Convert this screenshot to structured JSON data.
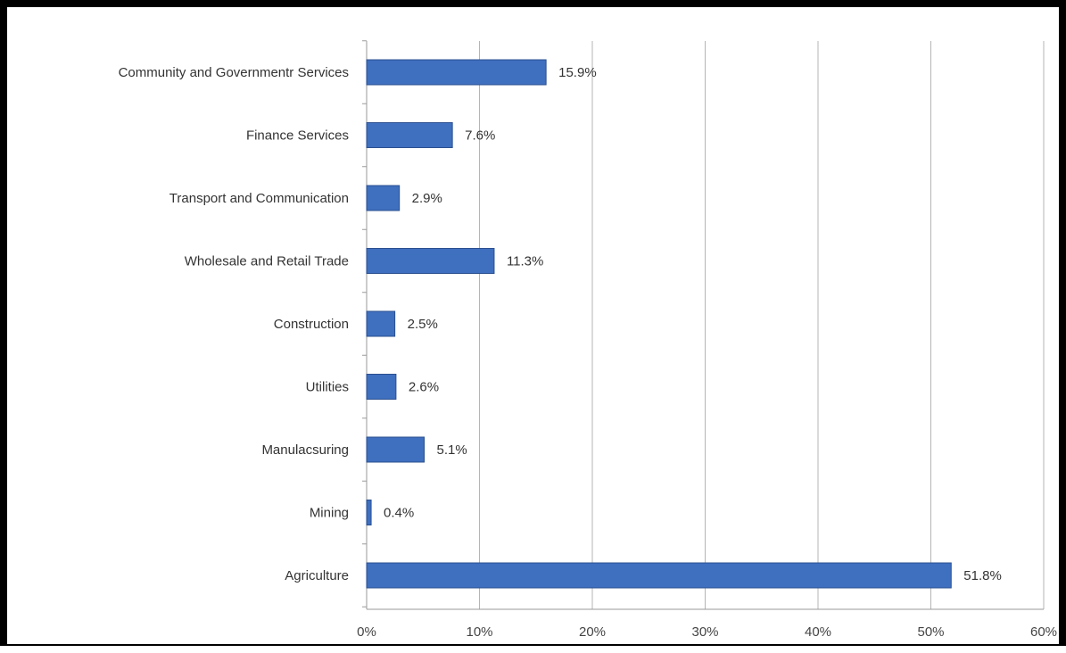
{
  "chart_data": {
    "type": "bar",
    "orientation": "horizontal",
    "categories": [
      "Community  and Governmentr Services",
      "Finance Services",
      "Transport and Communication",
      "Wholesale and Retail Trade",
      "Construction",
      "Utilities",
      "Manulacsuring",
      "Mining",
      "Agriculture"
    ],
    "values": [
      15.9,
      7.6,
      2.9,
      11.3,
      2.5,
      2.6,
      5.1,
      0.4,
      51.8
    ],
    "value_labels": [
      "15.9%",
      "7.6%",
      "2.9%",
      "11.3%",
      "2.5%",
      "2.6%",
      "5.1%",
      "0.4%",
      "51.8%"
    ],
    "x_ticks": [
      "0%",
      "10%",
      "20%",
      "30%",
      "40%",
      "50%",
      "60%"
    ],
    "xlim": [
      0,
      60
    ],
    "grid": true,
    "bar_color": "#3f6fbf",
    "bar_edge_color": "#2a4f8f"
  }
}
